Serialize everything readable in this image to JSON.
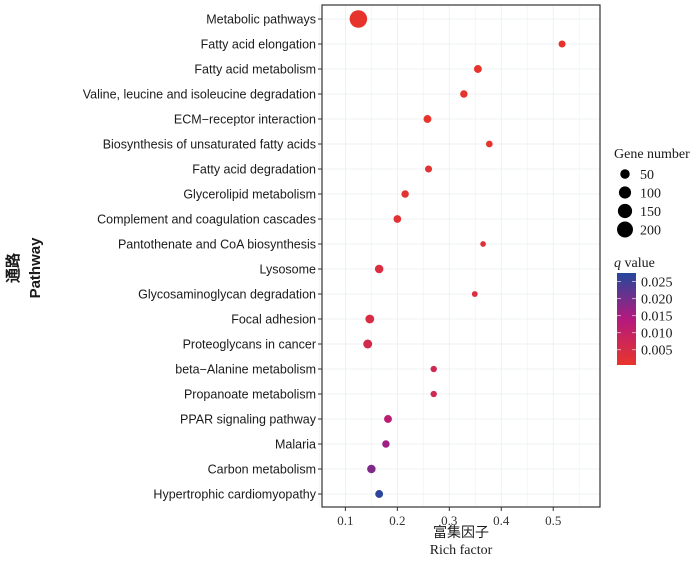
{
  "chart_data": {
    "type": "scatter",
    "title": "",
    "xlabel_cn": "富集因子",
    "xlabel": "Rich factor",
    "ylabel_cn": "通路",
    "ylabel": "Pathway",
    "xlim": [
      0.055,
      0.59
    ],
    "xticks": [
      0.1,
      0.2,
      0.3,
      0.4,
      0.5
    ],
    "xtick_labels": [
      "0.1",
      "0.2",
      "0.3",
      "0.4",
      "0.5"
    ],
    "grid": true,
    "categories": [
      "Metabolic pathways",
      "Fatty acid elongation",
      "Fatty acid metabolism",
      "Valine, leucine and isoleucine degradation",
      "ECM−receptor interaction",
      "Biosynthesis of unsaturated fatty acids",
      "Fatty acid degradation",
      "Glycerolipid metabolism",
      "Complement and coagulation cascades",
      "Pantothenate and CoA biosynthesis",
      "Lysosome",
      "Glycosaminoglycan degradation",
      "Focal adhesion",
      "Proteoglycans in cancer",
      "beta−Alanine metabolism",
      "Propanoate metabolism",
      "PPAR signaling pathway",
      "Malaria",
      "Carbon metabolism",
      "Hypertrophic cardiomyopathy"
    ],
    "points": [
      {
        "pathway": "Metabolic pathways",
        "rich_factor": 0.125,
        "gene_number": 205,
        "q_value": 0.001
      },
      {
        "pathway": "Fatty acid elongation",
        "rich_factor": 0.517,
        "gene_number": 15,
        "q_value": 0.001
      },
      {
        "pathway": "Fatty acid metabolism",
        "rich_factor": 0.355,
        "gene_number": 22,
        "q_value": 0.001
      },
      {
        "pathway": "Valine, leucine and isoleucine degradation",
        "rich_factor": 0.328,
        "gene_number": 18,
        "q_value": 0.001
      },
      {
        "pathway": "ECM−receptor interaction",
        "rich_factor": 0.258,
        "gene_number": 22,
        "q_value": 0.001
      },
      {
        "pathway": "Biosynthesis of unsaturated fatty acids",
        "rich_factor": 0.377,
        "gene_number": 12,
        "q_value": 0.001
      },
      {
        "pathway": "Fatty acid degradation",
        "rich_factor": 0.26,
        "gene_number": 15,
        "q_value": 0.002
      },
      {
        "pathway": "Glycerolipid metabolism",
        "rich_factor": 0.215,
        "gene_number": 18,
        "q_value": 0.002
      },
      {
        "pathway": "Complement and coagulation cascades",
        "rich_factor": 0.2,
        "gene_number": 20,
        "q_value": 0.002
      },
      {
        "pathway": "Pantothenate and CoA biosynthesis",
        "rich_factor": 0.365,
        "gene_number": 6,
        "q_value": 0.003
      },
      {
        "pathway": "Lysosome",
        "rich_factor": 0.165,
        "gene_number": 28,
        "q_value": 0.004
      },
      {
        "pathway": "Glycosaminoglycan degradation",
        "rich_factor": 0.349,
        "gene_number": 7,
        "q_value": 0.004
      },
      {
        "pathway": "Focal adhesion",
        "rich_factor": 0.147,
        "gene_number": 32,
        "q_value": 0.005
      },
      {
        "pathway": "Proteoglycans in cancer",
        "rich_factor": 0.143,
        "gene_number": 33,
        "q_value": 0.006
      },
      {
        "pathway": "beta−Alanine metabolism",
        "rich_factor": 0.27,
        "gene_number": 10,
        "q_value": 0.007
      },
      {
        "pathway": "Propanoate metabolism",
        "rich_factor": 0.27,
        "gene_number": 10,
        "q_value": 0.007
      },
      {
        "pathway": "PPAR signaling pathway",
        "rich_factor": 0.182,
        "gene_number": 22,
        "q_value": 0.012
      },
      {
        "pathway": "Malaria",
        "rich_factor": 0.178,
        "gene_number": 18,
        "q_value": 0.016
      },
      {
        "pathway": "Carbon metabolism",
        "rich_factor": 0.15,
        "gene_number": 28,
        "q_value": 0.019
      },
      {
        "pathway": "Hypertrophic cardiomyopathy",
        "rich_factor": 0.165,
        "gene_number": 22,
        "q_value": 0.027
      }
    ],
    "legend": {
      "position": "right",
      "size": {
        "title": "Gene number",
        "values": [
          50,
          100,
          150,
          200
        ],
        "labels": [
          "50",
          "100",
          "150",
          "200"
        ]
      },
      "color": {
        "title_italic": "q",
        "title_rest": " value",
        "range": [
          0.0005,
          0.0275
        ],
        "ticks": [
          0.025,
          0.02,
          0.015,
          0.01,
          0.005
        ],
        "labels": [
          "0.025",
          "0.020",
          "0.015",
          "0.010",
          "0.005"
        ],
        "low_color": "#e8352a",
        "mid_color": "#b4197e",
        "high_color": "#24489c"
      }
    }
  }
}
